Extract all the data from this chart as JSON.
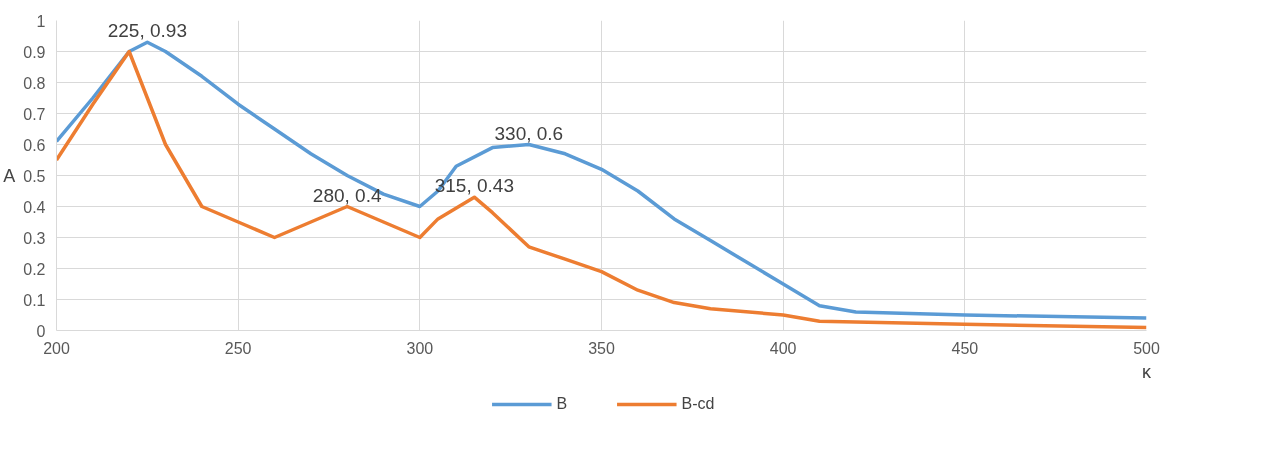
{
  "chart_data": {
    "type": "line",
    "xlabel": "κ",
    "ylabel": "A",
    "xlim": [
      200,
      500
    ],
    "xticks": [
      200,
      250,
      300,
      350,
      400,
      450,
      500
    ],
    "ylim": [
      0,
      1
    ],
    "yticks": [
      0,
      0.1,
      0.2,
      0.3,
      0.4,
      0.5,
      0.6,
      0.7,
      0.8,
      0.9,
      1
    ],
    "grid": true,
    "legend": "bottom",
    "marker": "none",
    "line_style": "solid",
    "series": [
      {
        "name": "B",
        "color": "#5b9bd5",
        "x": [
          200,
          210,
          220,
          225,
          230,
          240,
          250,
          260,
          270,
          280,
          290,
          300,
          305,
          310,
          320,
          330,
          340,
          350,
          360,
          370,
          380,
          390,
          400,
          410,
          420,
          450,
          500
        ],
        "values": [
          0.61,
          0.75,
          0.9,
          0.93,
          0.9,
          0.82,
          0.73,
          0.65,
          0.57,
          0.5,
          0.44,
          0.4,
          0.45,
          0.53,
          0.59,
          0.6,
          0.57,
          0.52,
          0.45,
          0.36,
          0.29,
          0.22,
          0.15,
          0.08,
          0.06,
          0.05,
          0.04
        ]
      },
      {
        "name": "B-cd",
        "color": "#ed7d31",
        "x": [
          200,
          210,
          220,
          225,
          230,
          240,
          250,
          260,
          270,
          280,
          290,
          300,
          305,
          315,
          320,
          330,
          340,
          350,
          360,
          370,
          380,
          400,
          410,
          450,
          500
        ],
        "values": [
          0.55,
          0.73,
          0.9,
          0.75,
          0.6,
          0.4,
          0.35,
          0.3,
          0.35,
          0.4,
          0.35,
          0.3,
          0.36,
          0.43,
          0.38,
          0.27,
          0.23,
          0.19,
          0.13,
          0.09,
          0.07,
          0.05,
          0.03,
          0.02,
          0.01
        ]
      }
    ],
    "annotations": [
      {
        "text": "225, 0.93",
        "x": 225,
        "y": 0.93
      },
      {
        "text": "330, 0.6",
        "x": 330,
        "y": 0.6
      },
      {
        "text": "280, 0.4",
        "x": 280,
        "y": 0.4
      },
      {
        "text": "315, 0.43",
        "x": 315,
        "y": 0.43
      }
    ]
  }
}
